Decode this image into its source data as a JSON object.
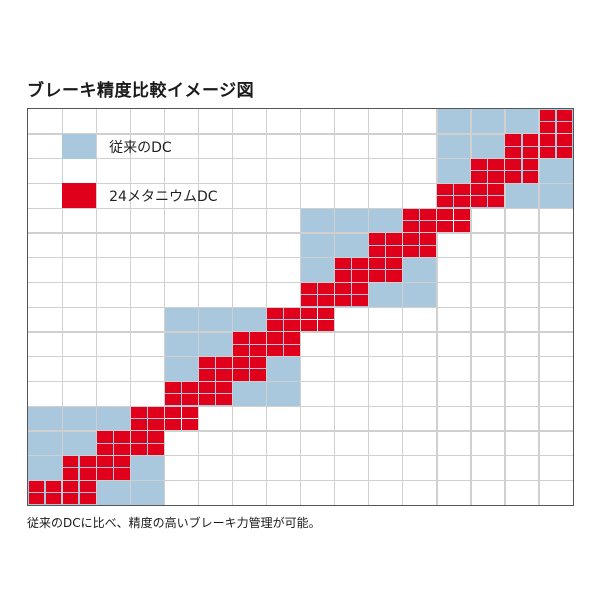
{
  "title": "ブレーキ精度比較イメージ図",
  "legend": [
    {
      "label": "従来のDC",
      "color": "#a9c8de"
    },
    {
      "label": "24メタニウムDC",
      "color": "#e0001b"
    }
  ],
  "caption": "従来のDCに比べ、精度の高いブレーキ力管理が可能。",
  "grid": {
    "columns": 16,
    "rows": 16,
    "line_color": "#d0d0d0"
  }
}
